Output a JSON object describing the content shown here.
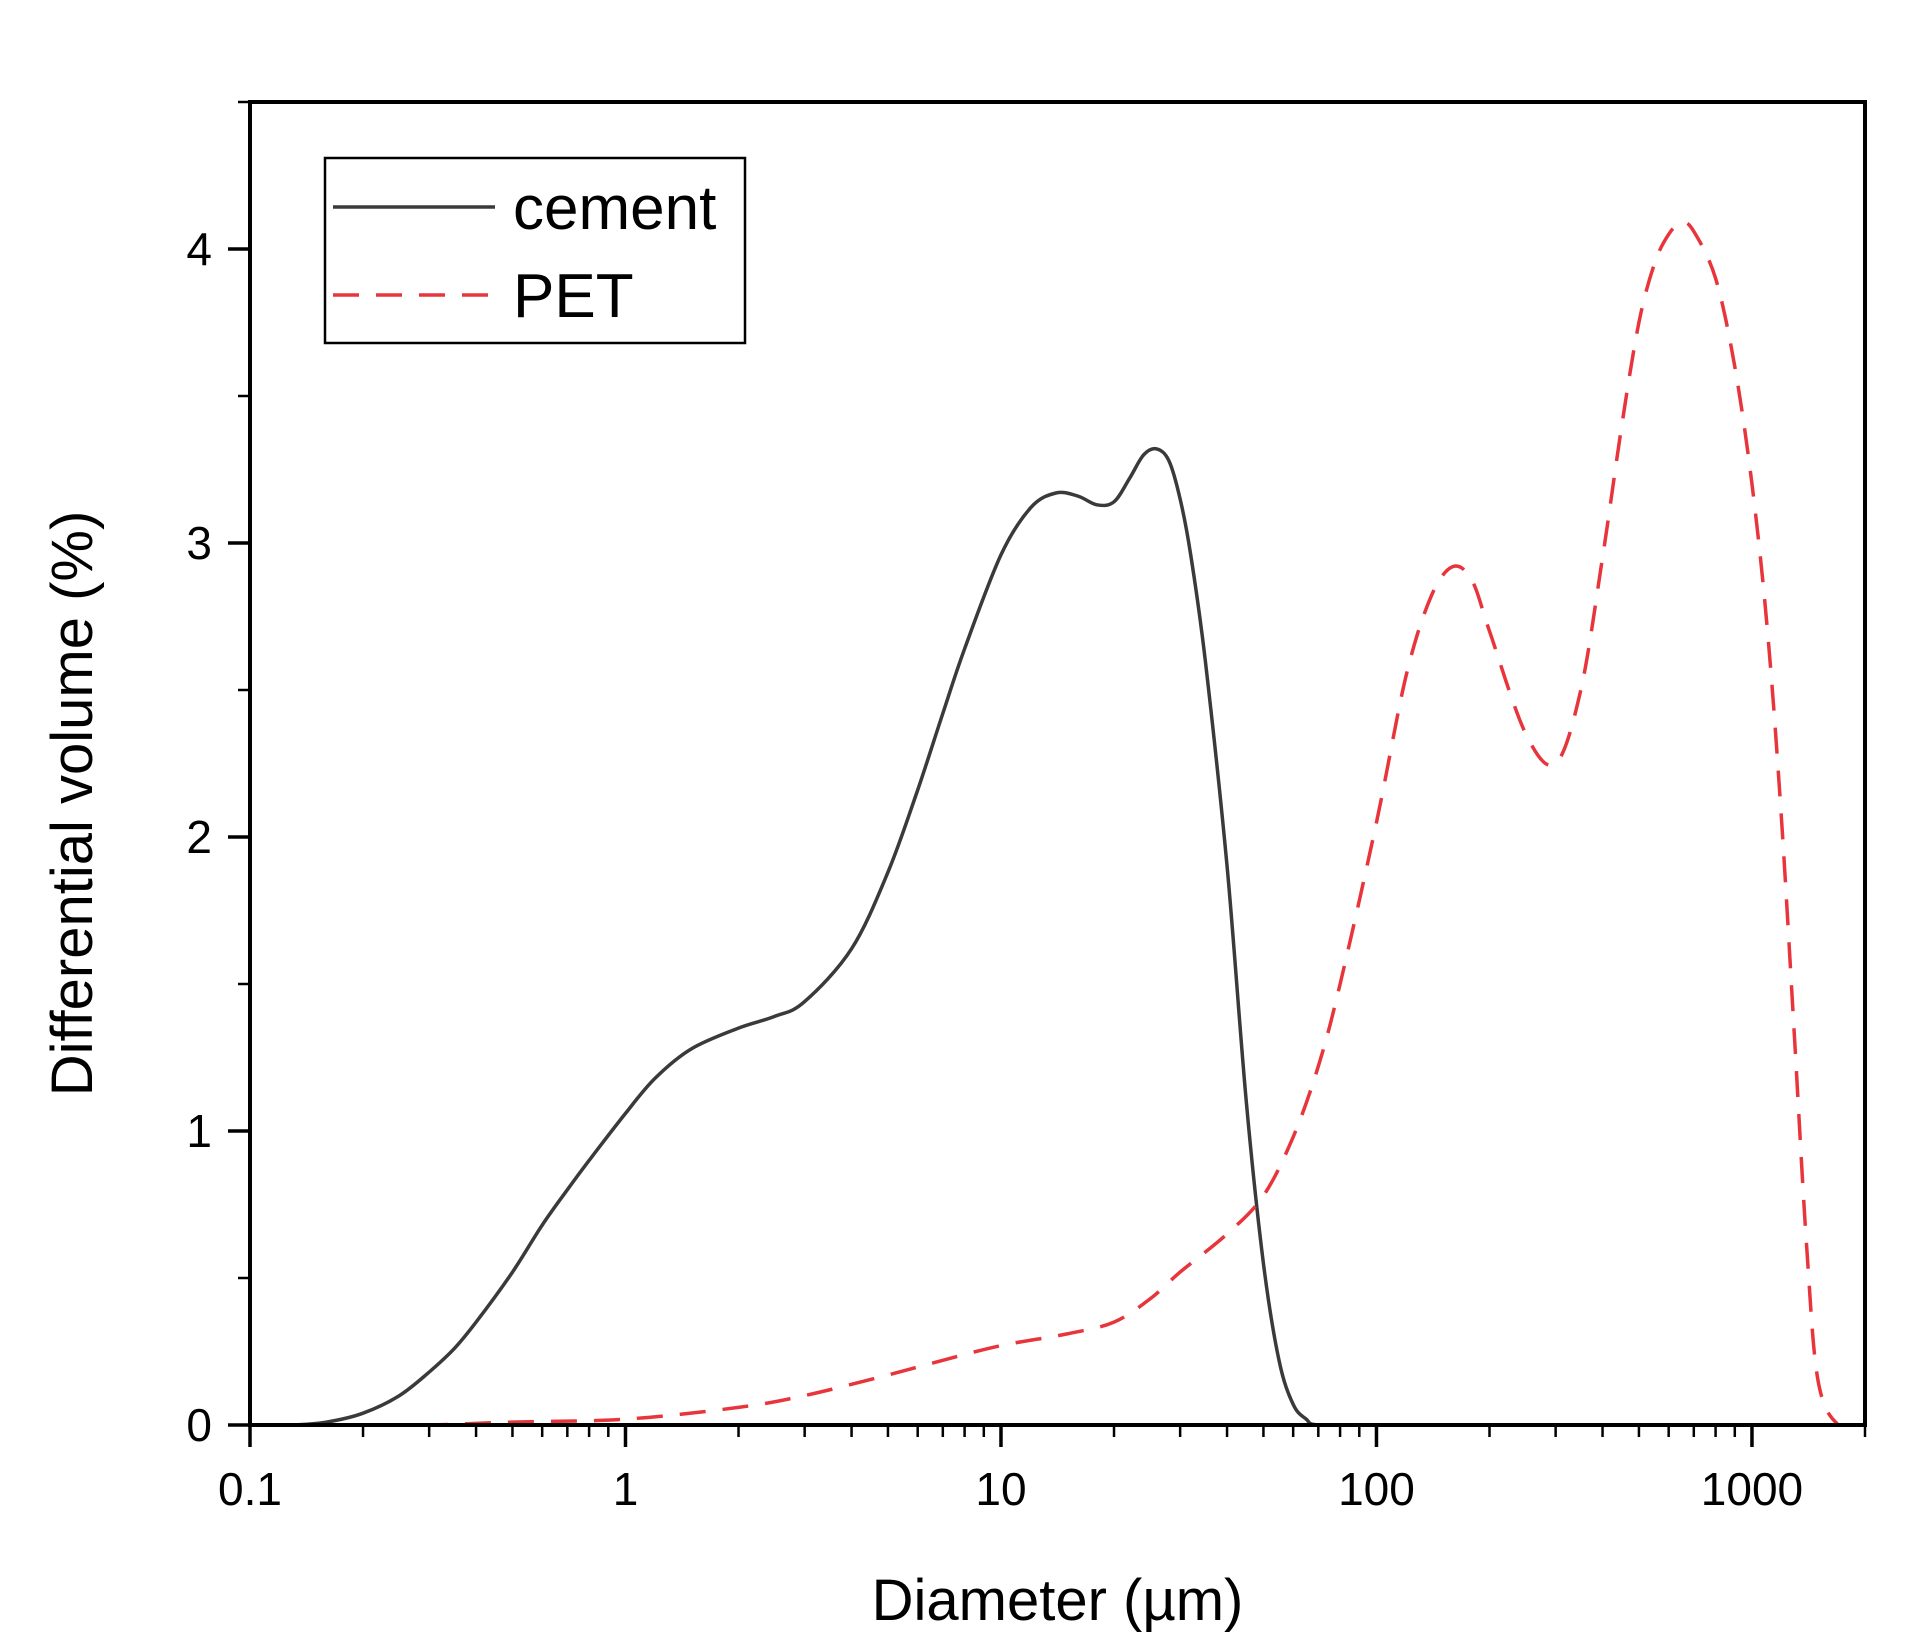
{
  "chart_data": {
    "type": "line",
    "xlabel": "Diameter (µm)",
    "ylabel": "Differential volume (%)",
    "x_scale": "log",
    "xlim": [
      0.1,
      2000
    ],
    "ylim": [
      0,
      4.5
    ],
    "x_ticks": [
      0.1,
      1,
      10,
      100,
      1000
    ],
    "x_tick_labels": [
      "0.1",
      "1",
      "10",
      "100",
      "1000"
    ],
    "y_ticks": [
      0,
      1,
      2,
      3,
      4
    ],
    "y_tick_labels": [
      "0",
      "1",
      "2",
      "3",
      "4"
    ],
    "grid": false,
    "legend": {
      "position": "top-left"
    },
    "series": [
      {
        "name": "cement",
        "color": "#3a3a3a",
        "dash": "solid",
        "x": [
          0.1,
          0.13,
          0.16,
          0.2,
          0.25,
          0.3,
          0.35,
          0.4,
          0.5,
          0.6,
          0.7,
          0.8,
          1.0,
          1.2,
          1.5,
          2.0,
          2.5,
          3.0,
          4.0,
          5.0,
          6.0,
          7.0,
          8.0,
          10,
          12,
          14,
          16,
          18,
          20,
          22,
          24,
          26,
          28,
          30,
          32,
          35,
          40,
          45,
          50,
          55,
          60,
          65,
          70,
          100,
          1000,
          2000
        ],
        "y": [
          0,
          0,
          0.01,
          0.04,
          0.1,
          0.18,
          0.26,
          0.35,
          0.52,
          0.68,
          0.8,
          0.9,
          1.06,
          1.18,
          1.28,
          1.35,
          1.39,
          1.44,
          1.62,
          1.88,
          2.16,
          2.42,
          2.64,
          2.96,
          3.12,
          3.17,
          3.16,
          3.13,
          3.14,
          3.22,
          3.3,
          3.32,
          3.28,
          3.15,
          2.96,
          2.6,
          1.9,
          1.1,
          0.55,
          0.22,
          0.07,
          0.02,
          0,
          0,
          0,
          0
        ]
      },
      {
        "name": "PET",
        "color": "#e8353b",
        "dash": "dashed",
        "x": [
          0.1,
          0.2,
          0.3,
          0.5,
          1,
          2,
          3,
          5,
          7,
          10,
          15,
          20,
          25,
          30,
          40,
          50,
          60,
          70,
          80,
          100,
          120,
          140,
          160,
          180,
          200,
          250,
          300,
          350,
          400,
          450,
          500,
          550,
          600,
          650,
          700,
          800,
          900,
          1000,
          1100,
          1200,
          1300,
          1400,
          1500,
          1700,
          2000
        ],
        "y": [
          0,
          0,
          0,
          0.01,
          0.02,
          0.06,
          0.1,
          0.17,
          0.22,
          0.27,
          0.31,
          0.35,
          0.43,
          0.52,
          0.65,
          0.78,
          0.98,
          1.22,
          1.5,
          2.05,
          2.55,
          2.82,
          2.92,
          2.87,
          2.7,
          2.35,
          2.25,
          2.5,
          2.95,
          3.4,
          3.75,
          3.95,
          4.05,
          4.09,
          4.06,
          3.9,
          3.6,
          3.2,
          2.7,
          2.05,
          1.3,
          0.6,
          0.15,
          0,
          0
        ]
      }
    ]
  }
}
